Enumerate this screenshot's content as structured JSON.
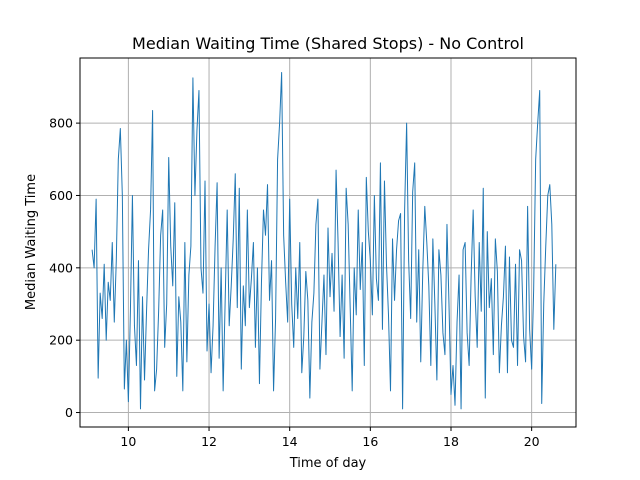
{
  "chart_data": {
    "type": "line",
    "title": "Median Waiting Time (Shared Stops) - No Control",
    "xlabel": "Time of day",
    "ylabel": "Median Waiting Time",
    "xlim": [
      8.8,
      21.1
    ],
    "ylim": [
      -40,
      980
    ],
    "xticks": [
      10,
      12,
      14,
      16,
      18,
      20
    ],
    "yticks": [
      0,
      200,
      400,
      600,
      800
    ],
    "grid": true,
    "color": "#1f77b4",
    "series": [
      {
        "name": "",
        "x": [
          9.1,
          9.15,
          9.2,
          9.25,
          9.3,
          9.35,
          9.4,
          9.45,
          9.5,
          9.55,
          9.6,
          9.65,
          9.7,
          9.75,
          9.8,
          9.85,
          9.9,
          9.95,
          10.0,
          10.05,
          10.1,
          10.15,
          10.2,
          10.25,
          10.3,
          10.35,
          10.4,
          10.45,
          10.5,
          10.55,
          10.6,
          10.65,
          10.7,
          10.75,
          10.8,
          10.85,
          10.9,
          10.95,
          11.0,
          11.05,
          11.1,
          11.15,
          11.2,
          11.25,
          11.3,
          11.35,
          11.4,
          11.45,
          11.5,
          11.55,
          11.6,
          11.65,
          11.7,
          11.75,
          11.8,
          11.85,
          11.9,
          11.95,
          12.0,
          12.05,
          12.1,
          12.15,
          12.2,
          12.25,
          12.3,
          12.35,
          12.4,
          12.45,
          12.5,
          12.55,
          12.6,
          12.65,
          12.7,
          12.75,
          12.8,
          12.85,
          12.9,
          12.95,
          13.0,
          13.05,
          13.1,
          13.15,
          13.2,
          13.25,
          13.3,
          13.35,
          13.4,
          13.45,
          13.5,
          13.55,
          13.6,
          13.65,
          13.7,
          13.75,
          13.8,
          13.85,
          13.9,
          13.95,
          14.0,
          14.05,
          14.1,
          14.15,
          14.2,
          14.25,
          14.3,
          14.35,
          14.4,
          14.45,
          14.5,
          14.55,
          14.6,
          14.65,
          14.7,
          14.75,
          14.8,
          14.85,
          14.9,
          14.95,
          15.0,
          15.05,
          15.1,
          15.15,
          15.2,
          15.25,
          15.3,
          15.35,
          15.4,
          15.45,
          15.5,
          15.55,
          15.6,
          15.65,
          15.7,
          15.75,
          15.8,
          15.85,
          15.9,
          15.95,
          16.0,
          16.05,
          16.1,
          16.15,
          16.2,
          16.25,
          16.3,
          16.35,
          16.4,
          16.45,
          16.5,
          16.55,
          16.6,
          16.65,
          16.7,
          16.75,
          16.8,
          16.85,
          16.9,
          16.95,
          17.0,
          17.05,
          17.1,
          17.15,
          17.2,
          17.25,
          17.3,
          17.35,
          17.4,
          17.45,
          17.5,
          17.55,
          17.6,
          17.65,
          17.7,
          17.75,
          17.8,
          17.85,
          17.9,
          17.95,
          18.0,
          18.05,
          18.1,
          18.15,
          18.2,
          18.25,
          18.3,
          18.35,
          18.4,
          18.45,
          18.5,
          18.55,
          18.6,
          18.65,
          18.7,
          18.75,
          18.8,
          18.85,
          18.9,
          18.95,
          19.0,
          19.05,
          19.1,
          19.15,
          19.2,
          19.25,
          19.3,
          19.35,
          19.4,
          19.45,
          19.5,
          19.55,
          19.6,
          19.65,
          19.7,
          19.75,
          19.8,
          19.85,
          19.9,
          19.95,
          20.0,
          20.05,
          20.1,
          20.15,
          20.2,
          20.25,
          20.3,
          20.35,
          20.4,
          20.45,
          20.5,
          20.55,
          20.6
        ],
        "y": [
          450,
          400,
          590,
          95,
          330,
          260,
          410,
          200,
          360,
          310,
          470,
          250,
          420,
          700,
          785,
          600,
          65,
          200,
          30,
          280,
          600,
          240,
          130,
          420,
          10,
          320,
          90,
          280,
          450,
          560,
          835,
          60,
          120,
          280,
          490,
          560,
          180,
          300,
          705,
          460,
          350,
          580,
          100,
          320,
          250,
          60,
          470,
          140,
          380,
          460,
          925,
          600,
          780,
          890,
          400,
          330,
          640,
          170,
          300,
          110,
          240,
          460,
          635,
          150,
          400,
          60,
          310,
          560,
          240,
          350,
          480,
          660,
          290,
          620,
          120,
          350,
          240,
          560,
          290,
          370,
          470,
          180,
          400,
          80,
          360,
          560,
          490,
          630,
          310,
          420,
          60,
          260,
          700,
          800,
          940,
          490,
          360,
          250,
          590,
          300,
          180,
          400,
          260,
          470,
          110,
          210,
          390,
          310,
          40,
          250,
          330,
          520,
          590,
          120,
          250,
          380,
          160,
          510,
          320,
          440,
          280,
          670,
          470,
          210,
          380,
          150,
          620,
          520,
          290,
          60,
          400,
          270,
          560,
          340,
          470,
          130,
          650,
          500,
          420,
          270,
          600,
          370,
          310,
          690,
          230,
          640,
          410,
          270,
          60,
          480,
          310,
          450,
          530,
          550,
          10,
          560,
          800,
          420,
          260,
          610,
          690,
          250,
          450,
          140,
          390,
          570,
          470,
          350,
          130,
          480,
          300,
          90,
          450,
          380,
          220,
          160,
          520,
          300,
          50,
          130,
          20,
          250,
          380,
          10,
          450,
          470,
          220,
          130,
          380,
          560,
          320,
          180,
          470,
          280,
          620,
          40,
          500,
          290,
          370,
          160,
          480,
          390,
          110,
          240,
          320,
          460,
          110,
          430,
          200,
          180,
          410,
          130,
          450,
          420,
          210,
          140,
          570,
          230,
          120,
          340,
          700,
          800,
          890,
          25,
          300,
          460,
          600,
          630,
          520,
          230,
          410
        ]
      }
    ]
  }
}
